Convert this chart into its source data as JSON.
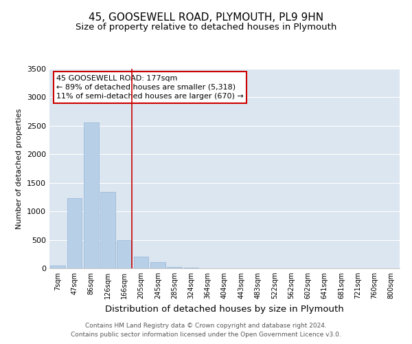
{
  "title1": "45, GOOSEWELL ROAD, PLYMOUTH, PL9 9HN",
  "title2": "Size of property relative to detached houses in Plymouth",
  "xlabel": "Distribution of detached houses by size in Plymouth",
  "ylabel": "Number of detached properties",
  "categories": [
    "7sqm",
    "47sqm",
    "86sqm",
    "126sqm",
    "166sqm",
    "205sqm",
    "245sqm",
    "285sqm",
    "324sqm",
    "364sqm",
    "404sqm",
    "443sqm",
    "483sqm",
    "522sqm",
    "562sqm",
    "602sqm",
    "641sqm",
    "681sqm",
    "721sqm",
    "760sqm",
    "800sqm"
  ],
  "values": [
    50,
    1230,
    2560,
    1340,
    500,
    205,
    110,
    30,
    10,
    3,
    1,
    0,
    0,
    0,
    0,
    0,
    0,
    0,
    0,
    0,
    0
  ],
  "bar_color": "#b8cfe8",
  "bar_edgecolor": "#93b5d8",
  "vline_color": "#cc0000",
  "annotation_line1": "45 GOOSEWELL ROAD: 177sqm",
  "annotation_line2": "← 89% of detached houses are smaller (5,318)",
  "annotation_line3": "11% of semi-detached houses are larger (670) →",
  "ylim": [
    0,
    3500
  ],
  "yticks": [
    0,
    500,
    1000,
    1500,
    2000,
    2500,
    3000,
    3500
  ],
  "bg_color": "#dce6f0",
  "title1_fontsize": 11,
  "title2_fontsize": 9.5,
  "ylabel_fontsize": 8,
  "xlabel_fontsize": 9.5,
  "footer1": "Contains HM Land Registry data © Crown copyright and database right 2024.",
  "footer2": "Contains public sector information licensed under the Open Government Licence v3.0."
}
